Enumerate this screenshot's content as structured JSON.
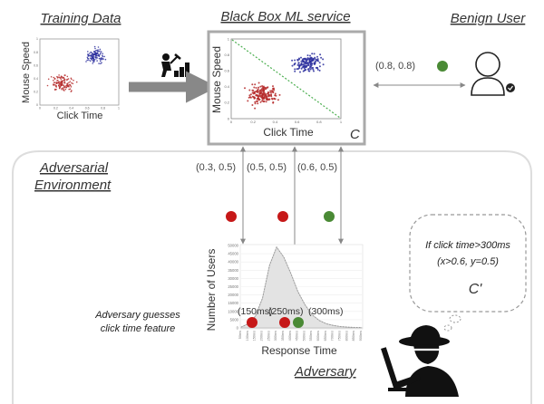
{
  "titles": {
    "training_data": "Training Data",
    "black_box": "Black Box ML service",
    "benign_user": "Benign User",
    "adversarial_environment_line1": "Adversarial",
    "adversarial_environment_line2": "Environment",
    "adversary": "Adversary"
  },
  "training_plot": {
    "xlabel": "Click Time",
    "ylabel": "Mouse Speed",
    "ticks_x": [
      "0",
      "0.2",
      "0.4",
      "0.6",
      "0.8",
      "1"
    ],
    "ticks_y": [
      "0",
      "0.2",
      "0.4",
      "0.6",
      "0.8",
      "1"
    ]
  },
  "service_plot": {
    "xlabel": "Click Time",
    "ylabel": "Mouse Speed",
    "classifier_label": "C",
    "ticks_x": [
      "0",
      "0.2",
      "0.4",
      "0.6",
      "0.8",
      "1"
    ],
    "ticks_y": [
      "0",
      "0.2",
      "0.4",
      "0.6",
      "0.8",
      "1"
    ]
  },
  "benign_query": {
    "coords": "(0.8, 0.8)",
    "color": "#4a8a35"
  },
  "probes": [
    {
      "coords": "(0.3, 0.5)",
      "color": "#c61818"
    },
    {
      "coords": "(0.5, 0.5)",
      "color": "#c61818"
    },
    {
      "coords": "(0.6, 0.5)",
      "color": "#4a8a35"
    }
  ],
  "response_chart": {
    "xlabel": "Response Time",
    "ylabel": "Number of Users",
    "y_ticks": [
      "50000",
      "45000",
      "40000",
      "35000",
      "30000",
      "25000",
      "20000",
      "15000",
      "10000",
      "5000",
      "0"
    ],
    "x_ticks": [
      "50ms",
      "100ms",
      "150ms",
      "200ms",
      "250ms",
      "300ms",
      "350ms",
      "400ms",
      "450ms",
      "500ms",
      "550ms",
      "600ms",
      "650ms",
      "700ms",
      "750ms",
      "800ms",
      "850ms",
      "900ms"
    ],
    "probe_labels": [
      "(150ms)",
      "(250ms)",
      "(300ms)"
    ]
  },
  "adversary_note": {
    "line1": "Adversary guesses",
    "line2": "click time feature"
  },
  "thought_bubble": {
    "line1": "If click time>300ms",
    "line2": "(x>0.6, y=0.5)",
    "label": "C'"
  },
  "colors": {
    "cluster_red": "#b52a2a",
    "cluster_blue": "#2b2f9e",
    "boundary": "#4caf50",
    "benign_green": "#4a8a35",
    "attack_red": "#c61818",
    "arrow_gray": "#888888",
    "frame_gray": "#aaaaaa"
  },
  "chart_data": {
    "type": "area",
    "title": "",
    "xlabel": "Response Time",
    "ylabel": "Number of Users",
    "categories": [
      "50ms",
      "100ms",
      "150ms",
      "200ms",
      "250ms",
      "300ms",
      "350ms",
      "400ms",
      "450ms",
      "500ms",
      "550ms",
      "600ms",
      "650ms",
      "700ms",
      "750ms",
      "800ms",
      "850ms",
      "900ms"
    ],
    "values": [
      500,
      2500,
      7000,
      18000,
      38000,
      49000,
      43000,
      33000,
      22000,
      14000,
      8000,
      4500,
      2500,
      1500,
      800,
      500,
      300,
      200
    ],
    "ylim": [
      0,
      50000
    ],
    "grid": true
  }
}
